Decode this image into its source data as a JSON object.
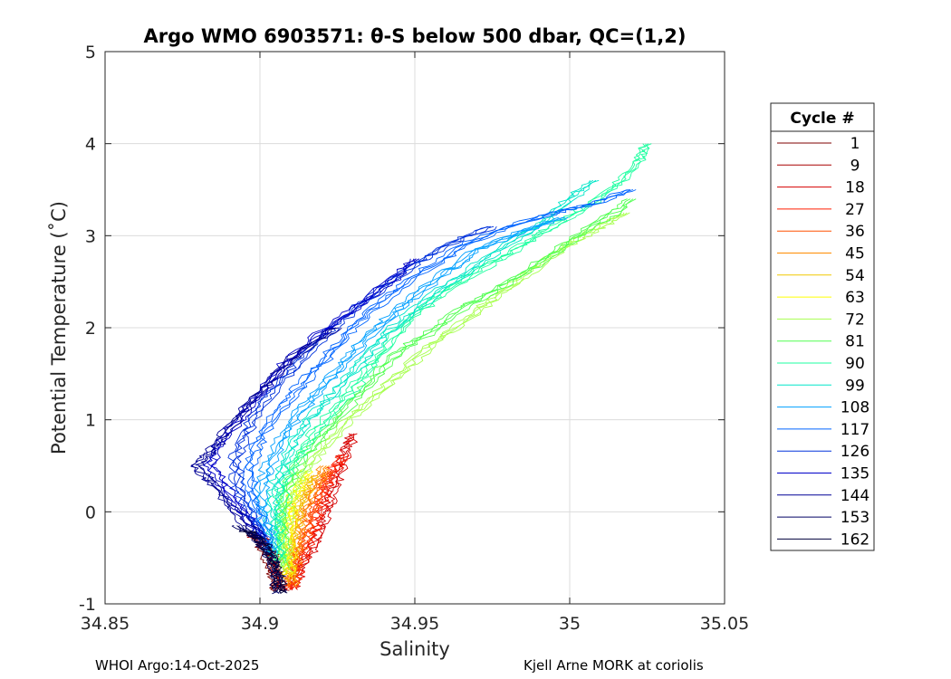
{
  "chart_data": {
    "type": "line",
    "title": "Argo WMO 6903571: θ-S below 500 dbar,  QC=(1,2)",
    "xlabel": "Salinity",
    "ylabel": "Potential Temperature (˚C)",
    "xlim": [
      34.85,
      35.05
    ],
    "ylim": [
      -1,
      5
    ],
    "xticks": [
      "34.85",
      "34.9",
      "34.95",
      "35",
      "35.05"
    ],
    "yticks": [
      "-1",
      "0",
      "1",
      "2",
      "3",
      "4",
      "5"
    ],
    "grid": true,
    "legend": {
      "title": "Cycle #",
      "placement": "right",
      "entries": [
        {
          "label": "1",
          "color": "#7f0000"
        },
        {
          "label": "9",
          "color": "#a80000"
        },
        {
          "label": "18",
          "color": "#d60000"
        },
        {
          "label": "27",
          "color": "#ff1e00"
        },
        {
          "label": "36",
          "color": "#ff5000"
        },
        {
          "label": "45",
          "color": "#ff8c00"
        },
        {
          "label": "54",
          "color": "#f0c800"
        },
        {
          "label": "63",
          "color": "#ffff00"
        },
        {
          "label": "72",
          "color": "#a8ff50"
        },
        {
          "label": "81",
          "color": "#50ff50"
        },
        {
          "label": "90",
          "color": "#1effa0"
        },
        {
          "label": "99",
          "color": "#00e6c8"
        },
        {
          "label": "108",
          "color": "#00a0ff"
        },
        {
          "label": "117",
          "color": "#0064ff"
        },
        {
          "label": "126",
          "color": "#0032dc"
        },
        {
          "label": "135",
          "color": "#0000c8"
        },
        {
          "label": "144",
          "color": "#000096"
        },
        {
          "label": "153",
          "color": "#000064"
        },
        {
          "label": "162",
          "color": "#00003c"
        }
      ]
    },
    "series": [
      {
        "color": "#7f0000",
        "points": [
          [
            34.906,
            -0.86
          ],
          [
            34.905,
            -0.75
          ],
          [
            34.904,
            -0.6
          ],
          [
            34.902,
            -0.45
          ],
          [
            34.9,
            -0.32
          ],
          [
            34.898,
            -0.22
          ]
        ]
      },
      {
        "color": "#a80000",
        "points": [
          [
            34.907,
            -0.86
          ],
          [
            34.906,
            -0.72
          ],
          [
            34.905,
            -0.55
          ],
          [
            34.903,
            -0.42
          ],
          [
            34.901,
            -0.3
          ],
          [
            34.897,
            -0.26
          ]
        ]
      },
      {
        "color": "#d60000",
        "points": [
          [
            34.91,
            -0.85
          ],
          [
            34.912,
            -0.7
          ],
          [
            34.915,
            -0.5
          ],
          [
            34.918,
            -0.3
          ],
          [
            34.92,
            -0.1
          ],
          [
            34.922,
            0.1
          ],
          [
            34.924,
            0.3
          ],
          [
            34.926,
            0.5
          ],
          [
            34.928,
            0.7
          ],
          [
            34.93,
            0.85
          ]
        ]
      },
      {
        "color": "#ff1e00",
        "points": [
          [
            34.91,
            -0.84
          ],
          [
            34.912,
            -0.65
          ],
          [
            34.914,
            -0.45
          ],
          [
            34.917,
            -0.2
          ],
          [
            34.919,
            0.05
          ],
          [
            34.921,
            0.25
          ],
          [
            34.924,
            0.45
          ],
          [
            34.927,
            0.62
          ]
        ]
      },
      {
        "color": "#ff5000",
        "points": [
          [
            34.91,
            -0.82
          ],
          [
            34.911,
            -0.6
          ],
          [
            34.913,
            -0.4
          ],
          [
            34.915,
            -0.15
          ],
          [
            34.917,
            0.05
          ],
          [
            34.919,
            0.25
          ],
          [
            34.922,
            0.45
          ]
        ]
      },
      {
        "color": "#ff8c00",
        "points": [
          [
            34.91,
            -0.8
          ],
          [
            34.911,
            -0.55
          ],
          [
            34.912,
            -0.35
          ],
          [
            34.913,
            -0.1
          ],
          [
            34.915,
            0.1
          ],
          [
            34.918,
            0.3
          ],
          [
            34.921,
            0.5
          ]
        ]
      },
      {
        "color": "#f0c800",
        "points": [
          [
            34.91,
            -0.75
          ],
          [
            34.91,
            -0.5
          ],
          [
            34.911,
            -0.25
          ],
          [
            34.912,
            0.0
          ],
          [
            34.914,
            0.2
          ],
          [
            34.917,
            0.4
          ]
        ]
      },
      {
        "color": "#ffff00",
        "points": [
          [
            34.909,
            -0.7
          ],
          [
            34.909,
            -0.45
          ],
          [
            34.909,
            -0.2
          ],
          [
            34.91,
            0.05
          ],
          [
            34.912,
            0.25
          ],
          [
            34.915,
            0.45
          ]
        ]
      },
      {
        "color": "#a8ff50",
        "points": [
          [
            34.908,
            -0.65
          ],
          [
            34.908,
            -0.4
          ],
          [
            34.908,
            -0.15
          ],
          [
            34.909,
            0.1
          ],
          [
            34.912,
            0.35
          ],
          [
            34.918,
            0.6
          ],
          [
            34.926,
            0.9
          ],
          [
            34.935,
            1.2
          ],
          [
            34.945,
            1.5
          ],
          [
            34.955,
            1.8
          ],
          [
            34.965,
            2.05
          ],
          [
            34.975,
            2.3
          ],
          [
            34.985,
            2.55
          ],
          [
            34.995,
            2.8
          ],
          [
            35.002,
            2.95
          ],
          [
            35.01,
            3.1
          ],
          [
            35.018,
            3.25
          ]
        ]
      },
      {
        "color": "#50ff50",
        "points": [
          [
            34.907,
            -0.6
          ],
          [
            34.907,
            -0.3
          ],
          [
            34.907,
            0.0
          ],
          [
            34.909,
            0.3
          ],
          [
            34.914,
            0.6
          ],
          [
            34.922,
            0.9
          ],
          [
            34.93,
            1.2
          ],
          [
            34.938,
            1.5
          ],
          [
            34.945,
            1.75
          ],
          [
            34.955,
            1.95
          ],
          [
            34.965,
            2.2
          ],
          [
            34.978,
            2.45
          ],
          [
            34.99,
            2.7
          ],
          [
            35.0,
            2.95
          ],
          [
            35.012,
            3.2
          ],
          [
            35.02,
            3.4
          ]
        ]
      },
      {
        "color": "#1effa0",
        "points": [
          [
            34.906,
            -0.55
          ],
          [
            34.906,
            -0.25
          ],
          [
            34.906,
            0.05
          ],
          [
            34.908,
            0.35
          ],
          [
            34.913,
            0.65
          ],
          [
            34.92,
            0.95
          ],
          [
            34.928,
            1.25
          ],
          [
            34.935,
            1.55
          ],
          [
            34.942,
            1.85
          ],
          [
            34.95,
            2.15
          ],
          [
            34.96,
            2.4
          ],
          [
            34.972,
            2.65
          ],
          [
            34.985,
            2.9
          ],
          [
            34.995,
            3.1
          ],
          [
            35.005,
            3.3
          ],
          [
            35.015,
            3.55
          ],
          [
            35.022,
            3.8
          ],
          [
            35.025,
            4.0
          ]
        ]
      },
      {
        "color": "#00e6c8",
        "points": [
          [
            34.905,
            -0.5
          ],
          [
            34.904,
            -0.2
          ],
          [
            34.904,
            0.1
          ],
          [
            34.906,
            0.4
          ],
          [
            34.91,
            0.7
          ],
          [
            34.916,
            1.0
          ],
          [
            34.924,
            1.3
          ],
          [
            34.932,
            1.6
          ],
          [
            34.94,
            1.9
          ],
          [
            34.95,
            2.2
          ],
          [
            34.962,
            2.5
          ],
          [
            34.975,
            2.8
          ],
          [
            34.99,
            3.1
          ],
          [
            35.0,
            3.4
          ],
          [
            35.008,
            3.6
          ]
        ]
      },
      {
        "color": "#00a0ff",
        "points": [
          [
            34.904,
            -0.45
          ],
          [
            34.902,
            -0.15
          ],
          [
            34.9,
            0.15
          ],
          [
            34.902,
            0.45
          ],
          [
            34.906,
            0.75
          ],
          [
            34.912,
            1.05
          ],
          [
            34.92,
            1.35
          ],
          [
            34.928,
            1.65
          ],
          [
            34.936,
            1.95
          ],
          [
            34.946,
            2.25
          ],
          [
            34.958,
            2.55
          ],
          [
            34.97,
            2.85
          ],
          [
            34.985,
            3.05
          ],
          [
            34.998,
            3.2
          ]
        ]
      },
      {
        "color": "#0064ff",
        "points": [
          [
            34.903,
            -0.4
          ],
          [
            34.9,
            -0.1
          ],
          [
            34.897,
            0.2
          ],
          [
            34.897,
            0.5
          ],
          [
            34.9,
            0.8
          ],
          [
            34.906,
            1.1
          ],
          [
            34.914,
            1.4
          ],
          [
            34.922,
            1.7
          ],
          [
            34.93,
            2.0
          ],
          [
            34.94,
            2.3
          ],
          [
            34.952,
            2.6
          ],
          [
            34.966,
            2.9
          ],
          [
            34.98,
            3.1
          ],
          [
            34.995,
            3.25
          ],
          [
            35.008,
            3.35
          ],
          [
            35.02,
            3.5
          ]
        ]
      },
      {
        "color": "#0032dc",
        "points": [
          [
            34.902,
            -0.35
          ],
          [
            34.897,
            -0.05
          ],
          [
            34.893,
            0.25
          ],
          [
            34.892,
            0.55
          ],
          [
            34.895,
            0.85
          ],
          [
            34.9,
            1.15
          ],
          [
            34.908,
            1.45
          ],
          [
            34.916,
            1.75
          ],
          [
            34.925,
            2.05
          ],
          [
            34.936,
            2.35
          ],
          [
            34.948,
            2.65
          ],
          [
            34.96,
            2.9
          ],
          [
            34.975,
            3.1
          ]
        ]
      },
      {
        "color": "#0000c8",
        "points": [
          [
            34.901,
            -0.3
          ],
          [
            34.894,
            0.0
          ],
          [
            34.888,
            0.3
          ],
          [
            34.884,
            0.5
          ],
          [
            34.887,
            0.75
          ],
          [
            34.893,
            1.0
          ],
          [
            34.9,
            1.3
          ],
          [
            34.908,
            1.6
          ],
          [
            34.918,
            1.9
          ],
          [
            34.93,
            2.2
          ],
          [
            34.942,
            2.5
          ],
          [
            34.95,
            2.75
          ]
        ]
      },
      {
        "color": "#000096",
        "points": [
          [
            34.9,
            -0.28
          ],
          [
            34.892,
            0.0
          ],
          [
            34.885,
            0.3
          ],
          [
            34.879,
            0.5
          ],
          [
            34.884,
            0.65
          ],
          [
            34.89,
            0.9
          ],
          [
            34.897,
            1.2
          ],
          [
            34.905,
            1.5
          ],
          [
            34.915,
            1.8
          ],
          [
            34.925,
            2.0
          ]
        ]
      },
      {
        "color": "#000064",
        "points": [
          [
            34.906,
            -0.88
          ],
          [
            34.905,
            -0.7
          ],
          [
            34.904,
            -0.5
          ],
          [
            34.901,
            -0.35
          ],
          [
            34.897,
            -0.25
          ],
          [
            34.893,
            -0.15
          ]
        ]
      },
      {
        "color": "#00003c",
        "points": [
          [
            34.907,
            -0.88
          ],
          [
            34.906,
            -0.75
          ],
          [
            34.905,
            -0.6
          ],
          [
            34.903,
            -0.45
          ],
          [
            34.9,
            -0.3
          ],
          [
            34.895,
            -0.2
          ]
        ]
      }
    ]
  },
  "footer": {
    "left": "WHOI Argo:14-Oct-2025",
    "right": "Kjell Arne MORK at coriolis"
  }
}
